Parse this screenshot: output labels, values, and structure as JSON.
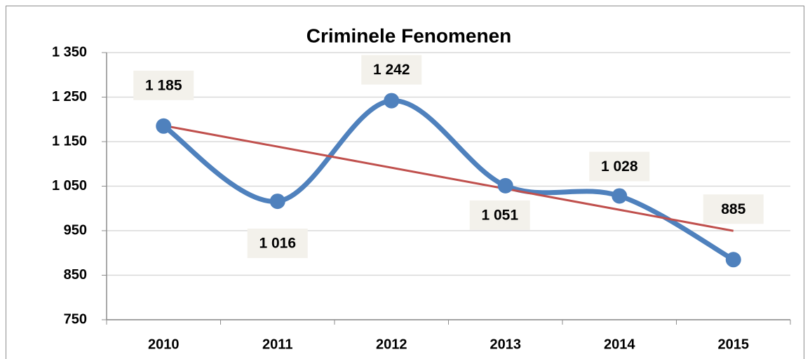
{
  "chart_data": {
    "type": "line",
    "title": "Criminele Fenomenen",
    "categories": [
      "2010",
      "2011",
      "2012",
      "2013",
      "2014",
      "2015"
    ],
    "series": [
      {
        "color": "#4f81bd",
        "values": [
          1185,
          1016,
          1242,
          1051,
          1028,
          885
        ],
        "value_labels": [
          "1 185",
          "1 016",
          "1 242",
          "1 051",
          "1 028",
          "885"
        ]
      }
    ],
    "ylim": [
      750,
      1350
    ],
    "yticks": [
      750,
      850,
      950,
      {
        "value": 1050,
        "label": "1 050"
      },
      {
        "value": 1150,
        "label": "1 150"
      },
      {
        "value": 1250,
        "label": "1 250"
      },
      {
        "value": 1350,
        "label": "1 350"
      }
    ],
    "grid": true,
    "smooth": true,
    "trendline": {
      "type": "linear",
      "color": "#c0504d"
    }
  }
}
